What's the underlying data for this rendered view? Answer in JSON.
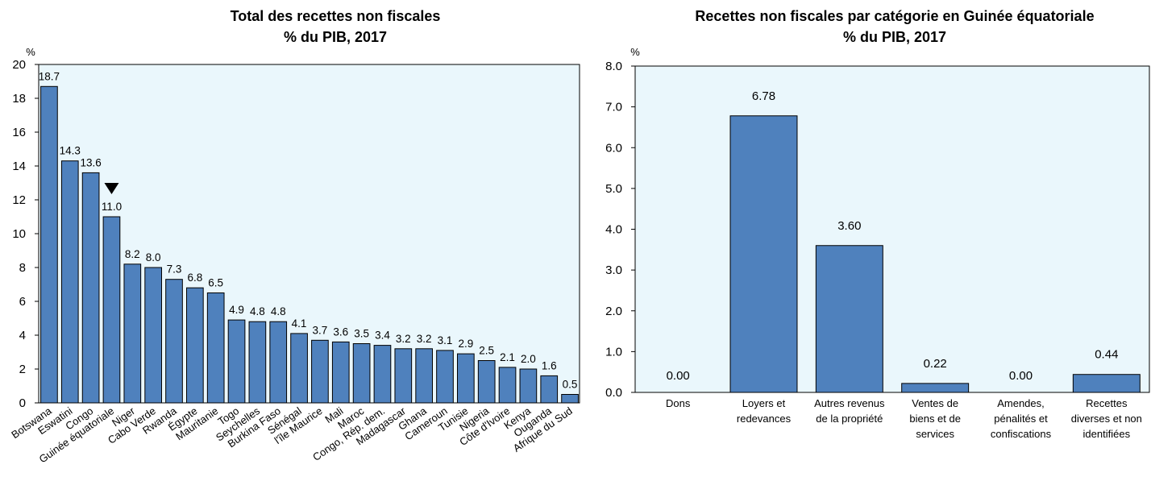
{
  "colors": {
    "bar": "#4f81bd",
    "bar_stroke": "#000000",
    "plot_bg": "#eaf7fc",
    "highlight_marker": "#000000"
  },
  "chart_data": [
    {
      "type": "bar",
      "title": [
        "Total des recettes non fiscales",
        "% du PIB, 2017"
      ],
      "ylabel": "%",
      "ylim": [
        0,
        20
      ],
      "yticks": [
        0,
        2,
        4,
        6,
        8,
        10,
        12,
        14,
        16,
        18,
        20
      ],
      "grid": false,
      "highlight": "Guinée équatoriale",
      "categories": [
        "Botswana",
        "Eswatini",
        "Congo",
        "Guinée équatoriale",
        "Niger",
        "Cabo Verde",
        "Rwanda",
        "Égypte",
        "Mauritanie",
        "Togo",
        "Seychelles",
        "Burkina Faso",
        "Sénégal",
        "l'île Maurice",
        "Mali",
        "Maroc",
        "Congo, Rép. dem.",
        "Madagascar",
        "Ghana",
        "Cameroun",
        "Tunisie",
        "Nigeria",
        "Côte d'Ivoire",
        "Kenya",
        "Ouganda",
        "Afrique du Sud"
      ],
      "values": [
        18.7,
        14.3,
        13.6,
        11.0,
        8.2,
        8.0,
        7.3,
        6.8,
        6.5,
        4.9,
        4.8,
        4.8,
        4.1,
        3.7,
        3.6,
        3.5,
        3.4,
        3.2,
        3.2,
        3.1,
        2.9,
        2.5,
        2.1,
        2.0,
        1.6,
        0.5
      ],
      "value_labels": [
        "18.7",
        "14.3",
        "13.6",
        "11.0",
        "8.2",
        "8.0",
        "7.3",
        "6.8",
        "6.5",
        "4.9",
        "4.8",
        "4.8",
        "4.1",
        "3.7",
        "3.6",
        "3.5",
        "3.4",
        "3.2",
        "3.2",
        "3.1",
        "2.9",
        "2.5",
        "2.1",
        "2.0",
        "1.6",
        "0.5"
      ]
    },
    {
      "type": "bar",
      "title": [
        "Recettes non fiscales par catégorie en Guinée équatoriale",
        "% du PIB, 2017"
      ],
      "ylabel": "%",
      "ylim": [
        0,
        8
      ],
      "yticks": [
        "0.0",
        "1.0",
        "2.0",
        "3.0",
        "4.0",
        "5.0",
        "6.0",
        "7.0",
        "8.0"
      ],
      "grid": false,
      "categories": [
        [
          "Dons"
        ],
        [
          "Loyers et",
          "redevances"
        ],
        [
          "Autres revenus",
          "de la propriété"
        ],
        [
          "Ventes de",
          "biens et de",
          "services"
        ],
        [
          "Amendes,",
          "pénalités et",
          "confiscations"
        ],
        [
          "Recettes",
          "diverses et non",
          "identifiées"
        ]
      ],
      "values": [
        0.0,
        6.78,
        3.6,
        0.22,
        0.0,
        0.44
      ],
      "value_labels": [
        "0.00",
        "6.78",
        "3.60",
        "0.22",
        "0.00",
        "0.44"
      ]
    }
  ]
}
